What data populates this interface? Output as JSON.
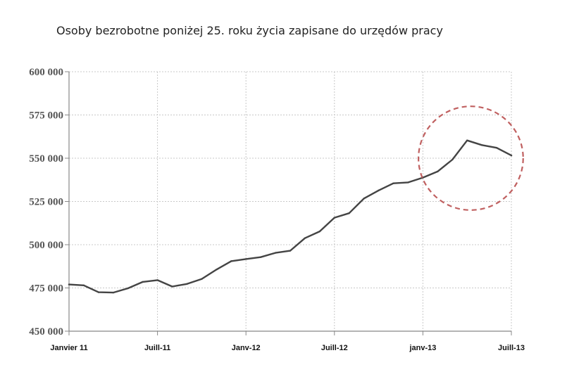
{
  "chart_data": {
    "type": "line",
    "title": "Osoby bezrobotne poniżej 25. roku życia zapisane do urzędów pracy",
    "xlabel": "",
    "ylabel": "",
    "ylim": [
      450000,
      600000
    ],
    "yticks": [
      450000,
      475000,
      500000,
      525000,
      550000,
      575000,
      600000
    ],
    "ytick_labels": [
      "450 000",
      "475 000",
      "500 000",
      "525 000",
      "550 000",
      "575 000",
      "600 000"
    ],
    "xlim": [
      0,
      30
    ],
    "xticks": [
      0,
      6,
      12,
      18,
      24,
      30
    ],
    "xtick_labels": [
      "Janvier 11",
      "Juill-11",
      "Janv-12",
      "Juill-12",
      "janv-13",
      "Juill-13"
    ],
    "grid": true,
    "legend": "none",
    "series": [
      {
        "color": "#444444",
        "x": [
          0,
          1,
          2,
          3,
          4,
          5,
          6,
          7,
          8,
          9,
          10,
          11,
          12,
          13,
          14,
          15,
          16,
          17,
          18,
          19,
          20,
          21,
          22,
          23,
          24,
          25,
          26,
          27,
          28,
          29,
          30
        ],
        "values": [
          477000,
          476500,
          472500,
          472300,
          474800,
          478500,
          479500,
          475800,
          477300,
          480200,
          485600,
          490500,
          491700,
          492800,
          495300,
          496500,
          503800,
          507700,
          515600,
          518200,
          526700,
          531400,
          535500,
          536000,
          538800,
          542300,
          549200,
          560300,
          557600,
          556000,
          551600
        ]
      }
    ],
    "annotation": {
      "shape": "dashed-circle",
      "color": "#c06060",
      "x_range": [
        23.7,
        30.8
      ],
      "y_range": [
        520000,
        580000
      ]
    }
  }
}
